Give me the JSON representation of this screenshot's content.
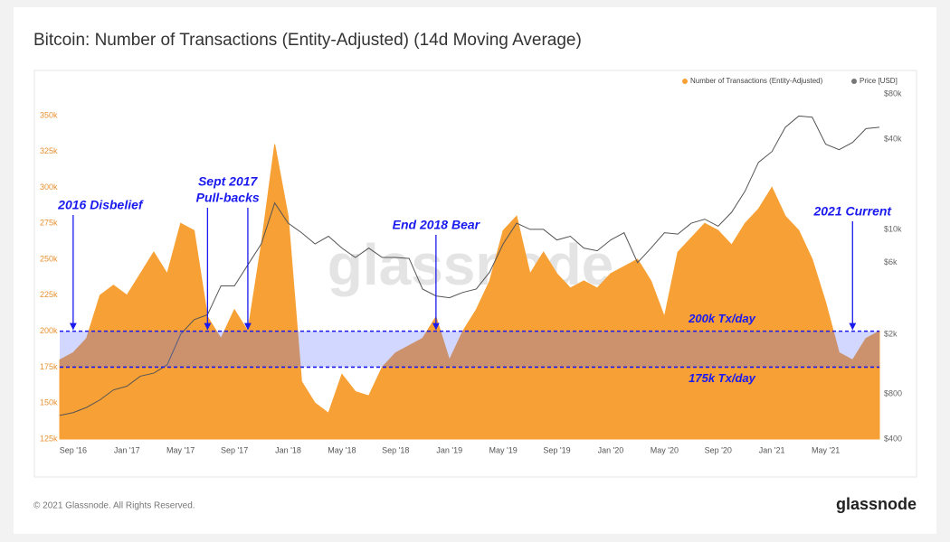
{
  "chart_data": {
    "type": "area-line",
    "title": "Bitcoin: Number of Transactions (Entity-Adjusted) (14d Moving Average)",
    "x": [
      "2016-08",
      "2016-09",
      "2016-10",
      "2016-11",
      "2016-12",
      "2017-01",
      "2017-02",
      "2017-03",
      "2017-04",
      "2017-05",
      "2017-06",
      "2017-07",
      "2017-08",
      "2017-09",
      "2017-10",
      "2017-11",
      "2017-12",
      "2018-01",
      "2018-02",
      "2018-03",
      "2018-04",
      "2018-05",
      "2018-06",
      "2018-07",
      "2018-08",
      "2018-09",
      "2018-10",
      "2018-11",
      "2018-12",
      "2019-01",
      "2019-02",
      "2019-03",
      "2019-04",
      "2019-05",
      "2019-06",
      "2019-07",
      "2019-08",
      "2019-09",
      "2019-10",
      "2019-11",
      "2019-12",
      "2020-01",
      "2020-02",
      "2020-03",
      "2020-04",
      "2020-05",
      "2020-06",
      "2020-07",
      "2020-08",
      "2020-09",
      "2020-10",
      "2020-11",
      "2020-12",
      "2021-01",
      "2021-02",
      "2021-03",
      "2021-04",
      "2021-05",
      "2021-06",
      "2021-07",
      "2021-08",
      "2021-09"
    ],
    "series": [
      {
        "name": "Number of Transactions (Entity-Adjusted)",
        "color": "#f7a035",
        "kind": "area",
        "values": [
          180000,
          185000,
          195000,
          225000,
          232000,
          225000,
          240000,
          255000,
          240000,
          275000,
          270000,
          210000,
          195000,
          215000,
          200000,
          260000,
          330000,
          280000,
          165000,
          150000,
          143000,
          170000,
          158000,
          155000,
          175000,
          185000,
          190000,
          195000,
          210000,
          180000,
          200000,
          215000,
          235000,
          270000,
          280000,
          240000,
          255000,
          240000,
          230000,
          235000,
          230000,
          240000,
          245000,
          250000,
          235000,
          210000,
          255000,
          265000,
          275000,
          270000,
          260000,
          275000,
          285000,
          300000,
          280000,
          270000,
          250000,
          220000,
          185000,
          180000,
          195000,
          200000
        ]
      },
      {
        "name": "Price [USD]",
        "color": "#555555",
        "kind": "line",
        "axis": "y2",
        "values": [
          575,
          600,
          650,
          730,
          850,
          900,
          1050,
          1100,
          1250,
          2000,
          2500,
          2700,
          4200,
          4200,
          5800,
          8000,
          15000,
          11000,
          9500,
          8000,
          9000,
          7500,
          6500,
          7500,
          6500,
          6500,
          6400,
          4000,
          3600,
          3500,
          3800,
          4000,
          5200,
          8000,
          11000,
          10000,
          10000,
          8500,
          9000,
          7500,
          7200,
          8500,
          9500,
          6000,
          7500,
          9500,
          9300,
          11000,
          11700,
          10500,
          13000,
          18000,
          28000,
          33000,
          48000,
          57000,
          56000,
          37000,
          34000,
          38000,
          47000,
          48000
        ]
      }
    ],
    "xlim": [
      "2016-08",
      "2021-09"
    ],
    "xticks": [
      {
        "value": "2016-09",
        "label": "Sep '16"
      },
      {
        "value": "2017-01",
        "label": "Jan '17"
      },
      {
        "value": "2017-05",
        "label": "May '17"
      },
      {
        "value": "2017-09",
        "label": "Sep '17"
      },
      {
        "value": "2018-01",
        "label": "Jan '18"
      },
      {
        "value": "2018-05",
        "label": "May '18"
      },
      {
        "value": "2018-09",
        "label": "Sep '18"
      },
      {
        "value": "2019-01",
        "label": "Jan '19"
      },
      {
        "value": "2019-05",
        "label": "May '19"
      },
      {
        "value": "2019-09",
        "label": "Sep '19"
      },
      {
        "value": "2020-01",
        "label": "Jan '20"
      },
      {
        "value": "2020-05",
        "label": "May '20"
      },
      {
        "value": "2020-09",
        "label": "Sep '20"
      },
      {
        "value": "2021-01",
        "label": "Jan '21"
      },
      {
        "value": "2021-05",
        "label": "May '21"
      }
    ],
    "ylim": [
      125000,
      365000
    ],
    "yticks": [
      {
        "value": 125000,
        "label": "125k"
      },
      {
        "value": 150000,
        "label": "150k"
      },
      {
        "value": 175000,
        "label": "175k"
      },
      {
        "value": 200000,
        "label": "200k"
      },
      {
        "value": 225000,
        "label": "225k"
      },
      {
        "value": 250000,
        "label": "250k"
      },
      {
        "value": 275000,
        "label": "275k"
      },
      {
        "value": 300000,
        "label": "300k"
      },
      {
        "value": 325000,
        "label": "325k"
      },
      {
        "value": 350000,
        "label": "350k"
      }
    ],
    "y2lim": [
      400,
      80000
    ],
    "y2scale": "log",
    "y2ticks": [
      {
        "value": 400,
        "label": "$400"
      },
      {
        "value": 800,
        "label": "$800"
      },
      {
        "value": 2000,
        "label": "$2k"
      },
      {
        "value": 6000,
        "label": "$6k"
      },
      {
        "value": 10000,
        "label": "$10k"
      },
      {
        "value": 40000,
        "label": "$40k"
      },
      {
        "value": 80000,
        "label": "$80k"
      }
    ],
    "bands": [
      {
        "value": 200000,
        "label": "200k Tx/day"
      },
      {
        "value": 175000,
        "label": "175k Tx/day"
      }
    ],
    "annotations": [
      {
        "lines": [
          "2016 Disbelief"
        ],
        "arrows": [
          "2016-09"
        ]
      },
      {
        "lines": [
          "Sept 2017",
          "Pull-backs"
        ],
        "arrows": [
          "2017-07",
          "2017-10"
        ]
      },
      {
        "lines": [
          "End 2018 Bear"
        ],
        "arrows": [
          "2018-12"
        ]
      },
      {
        "lines": [
          "2021 Current"
        ],
        "arrows": [
          "2021-07"
        ]
      }
    ],
    "watermark": "glassnode",
    "footer": "© 2021 Glassnode. All Rights Reserved.",
    "logo": "glassnode"
  }
}
